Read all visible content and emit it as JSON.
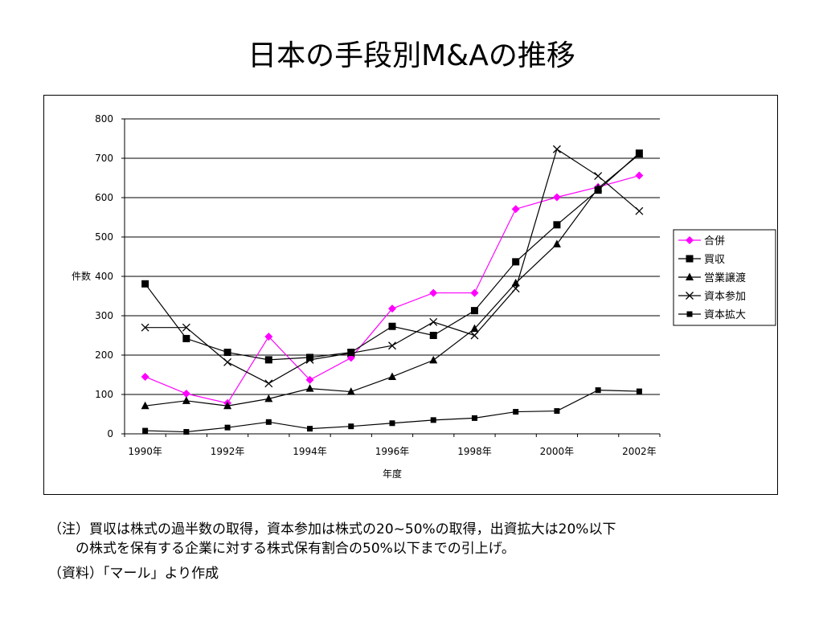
{
  "title": "日本の手段別M&Aの推移",
  "notes": {
    "line1": "（注）買収は株式の過半数の取得，資本参加は株式の20~50%の取得，出資拡大は20%以下",
    "line2": "の株式を保有する企業に対する株式保有割合の50%以下までの引上げ。",
    "line3": "（資料）「マール」より作成"
  },
  "chart_data": {
    "type": "line",
    "title": "",
    "xlabel": "年度",
    "ylabel": "件数",
    "x": [
      1990,
      1991,
      1992,
      1993,
      1994,
      1995,
      1996,
      1997,
      1998,
      1999,
      2000,
      2001,
      2002
    ],
    "x_tick_labels": [
      "1990年",
      "1992年",
      "1994年",
      "1996年",
      "1998年",
      "2000年",
      "2002年"
    ],
    "x_tick_years": [
      1990,
      1992,
      1994,
      1996,
      1998,
      2000,
      2002
    ],
    "ylim": [
      0,
      800
    ],
    "y_ticks": [
      0,
      100,
      200,
      300,
      400,
      500,
      600,
      700,
      800
    ],
    "grid": true,
    "legend_position": "right",
    "series": [
      {
        "name": "合併",
        "marker": "diamond",
        "color": "#ff00ff",
        "values": [
          145,
          102,
          78,
          247,
          137,
          193,
          318,
          358,
          358,
          571,
          601,
          627,
          656
        ]
      },
      {
        "name": "買収",
        "marker": "square",
        "color": "#000000",
        "values": [
          381,
          242,
          207,
          188,
          194,
          207,
          273,
          250,
          313,
          437,
          531,
          619,
          713
        ]
      },
      {
        "name": "営業譲渡",
        "marker": "triangle",
        "color": "#000000",
        "values": [
          71,
          84,
          71,
          89,
          115,
          107,
          145,
          187,
          267,
          383,
          482,
          624,
          710
        ]
      },
      {
        "name": "資本参加",
        "marker": "x",
        "color": "#000000",
        "values": [
          270,
          270,
          182,
          128,
          188,
          205,
          224,
          284,
          250,
          369,
          723,
          655,
          566
        ]
      },
      {
        "name": "資本拡大",
        "marker": "square-small",
        "color": "#000000",
        "values": [
          8,
          5,
          16,
          30,
          13,
          19,
          27,
          35,
          40,
          56,
          58,
          111,
          108
        ]
      }
    ]
  }
}
